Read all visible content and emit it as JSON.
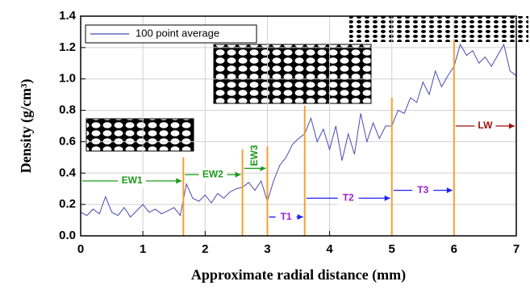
{
  "chart_data": {
    "type": "line",
    "xlabel": "Approximate radial distance (mm)",
    "ylabel": "Density (g/cm³)",
    "x": [
      0,
      0.1,
      0.2,
      0.3,
      0.4,
      0.5,
      0.6,
      0.7,
      0.8,
      0.9,
      1.0,
      1.1,
      1.2,
      1.3,
      1.4,
      1.5,
      1.6,
      1.7,
      1.8,
      1.9,
      2.0,
      2.1,
      2.2,
      2.3,
      2.4,
      2.5,
      2.6,
      2.7,
      2.8,
      2.9,
      3.0,
      3.1,
      3.2,
      3.3,
      3.4,
      3.5,
      3.6,
      3.7,
      3.8,
      3.9,
      4.0,
      4.1,
      4.2,
      4.3,
      4.4,
      4.5,
      4.6,
      4.7,
      4.8,
      4.9,
      5.0,
      5.1,
      5.2,
      5.3,
      5.4,
      5.5,
      5.6,
      5.7,
      5.8,
      5.9,
      6.0,
      6.1,
      6.2,
      6.3,
      6.4,
      6.5,
      6.6,
      6.7,
      6.8,
      6.9,
      7.0
    ],
    "series": [
      {
        "name": "100 point average",
        "color": "#4a4ab4",
        "values": [
          0.15,
          0.13,
          0.17,
          0.14,
          0.25,
          0.15,
          0.13,
          0.18,
          0.12,
          0.16,
          0.2,
          0.15,
          0.17,
          0.14,
          0.16,
          0.18,
          0.13,
          0.33,
          0.24,
          0.22,
          0.26,
          0.21,
          0.27,
          0.24,
          0.28,
          0.3,
          0.31,
          0.34,
          0.29,
          0.35,
          0.22,
          0.35,
          0.45,
          0.5,
          0.58,
          0.62,
          0.65,
          0.75,
          0.6,
          0.68,
          0.55,
          0.7,
          0.48,
          0.65,
          0.52,
          0.78,
          0.6,
          0.72,
          0.62,
          0.7,
          0.7,
          0.8,
          0.78,
          0.88,
          0.85,
          0.98,
          0.9,
          1.05,
          0.95,
          1.02,
          1.08,
          1.22,
          1.15,
          1.18,
          1.1,
          1.14,
          1.08,
          1.15,
          1.22,
          1.05,
          1.02
        ]
      }
    ],
    "xlim": [
      0,
      7
    ],
    "ylim": [
      0,
      1.4
    ],
    "xticks": [
      0,
      1,
      2,
      3,
      4,
      5,
      6,
      7
    ],
    "yticks": [
      {
        "value": 0,
        "label": "0.0"
      },
      {
        "value": 0.2,
        "label": "0.2"
      },
      {
        "value": 0.4,
        "label": "0.4"
      },
      {
        "value": 0.6,
        "label": "0.6"
      },
      {
        "value": 0.8,
        "label": "0.8"
      },
      {
        "value": 1.0,
        "label": "1.0"
      },
      {
        "value": 1.2,
        "label": "1.2"
      },
      {
        "value": 1.4,
        "label": "1.4"
      }
    ],
    "grid": true,
    "marker_color": "#f5a030",
    "markers": [
      {
        "x": 1.65,
        "top": 0.5
      },
      {
        "x": 2.6,
        "top": 0.55
      },
      {
        "x": 3.0,
        "top": 0.57
      },
      {
        "x": 3.6,
        "top": 0.83
      },
      {
        "x": 5.0,
        "top": 0.88
      },
      {
        "x": 6.0,
        "top": 1.25
      }
    ],
    "annotations": [
      {
        "label": "EW1",
        "x0": 0,
        "x1": 1.65,
        "y": 0.35,
        "color": "#1a9a1a",
        "label_color": "#1a9a1a"
      },
      {
        "label": "EW2",
        "x0": 1.65,
        "x1": 2.6,
        "y": 0.39,
        "color": "#1a9a1a",
        "label_color": "#1a9a1a"
      },
      {
        "label": "EW3",
        "x0": 2.6,
        "x1": 3.0,
        "y": 0.43,
        "color": "#1a9a1a",
        "label_color": "#1a9a1a",
        "vertical": true
      },
      {
        "label": "T1",
        "x0": 3.0,
        "x1": 3.6,
        "y": 0.12,
        "color": "#2020f0",
        "label_color": "#a020d0"
      },
      {
        "label": "T2",
        "x0": 3.6,
        "x1": 5.0,
        "y": 0.24,
        "color": "#2020f0",
        "label_color": "#a020d0"
      },
      {
        "label": "T3",
        "x0": 5.0,
        "x1": 6.0,
        "y": 0.29,
        "color": "#2020f0",
        "label_color": "#a020d0"
      },
      {
        "label": "LW",
        "x0": 6.0,
        "x1": 7.0,
        "y": 0.7,
        "color": "#a01010",
        "label_color": "#a01010"
      }
    ]
  }
}
